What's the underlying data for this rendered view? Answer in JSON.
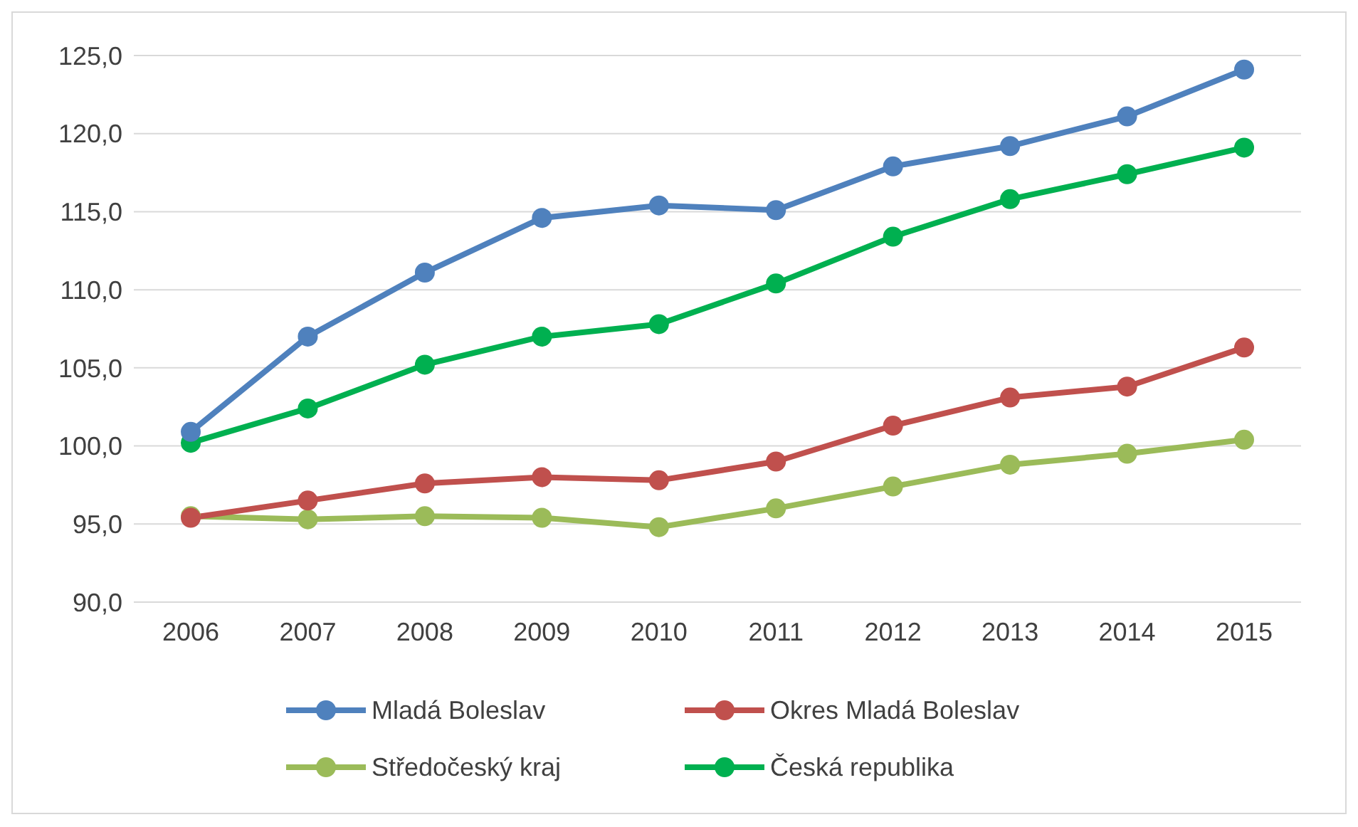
{
  "chart_data": {
    "type": "line",
    "categories": [
      "2006",
      "2007",
      "2008",
      "2009",
      "2010",
      "2011",
      "2012",
      "2013",
      "2014",
      "2015"
    ],
    "series": [
      {
        "name": "Mladá Boleslav",
        "color": "#4f81bd",
        "values": [
          100.9,
          107.0,
          111.1,
          114.6,
          115.4,
          115.1,
          117.9,
          119.2,
          121.1,
          124.1
        ]
      },
      {
        "name": "Okres Mladá Boleslav",
        "color": "#c0504d",
        "values": [
          95.4,
          96.5,
          97.6,
          98.0,
          97.8,
          99.0,
          101.3,
          103.1,
          103.8,
          106.3
        ]
      },
      {
        "name": "Středočeský kraj",
        "color": "#9bbb59",
        "values": [
          95.5,
          95.3,
          95.5,
          95.4,
          94.8,
          96.0,
          97.4,
          98.8,
          99.5,
          100.4
        ]
      },
      {
        "name": "Česká republika",
        "color": "#00b050",
        "values": [
          100.2,
          102.4,
          105.2,
          107.0,
          107.8,
          110.4,
          113.4,
          115.8,
          117.4,
          119.1
        ]
      }
    ],
    "ylim": [
      90,
      125
    ],
    "yticks": [
      {
        "value": 90,
        "label": "90,0"
      },
      {
        "value": 95,
        "label": "95,0"
      },
      {
        "value": 100,
        "label": "100,0"
      },
      {
        "value": 105,
        "label": "105,0"
      },
      {
        "value": 110,
        "label": "110,0"
      },
      {
        "value": 115,
        "label": "115,0"
      },
      {
        "value": 120,
        "label": "120,0"
      },
      {
        "value": 125,
        "label": "125,0"
      }
    ],
    "grid": "y",
    "legend": "bottom",
    "marker": "circle",
    "line_style": "solid"
  }
}
